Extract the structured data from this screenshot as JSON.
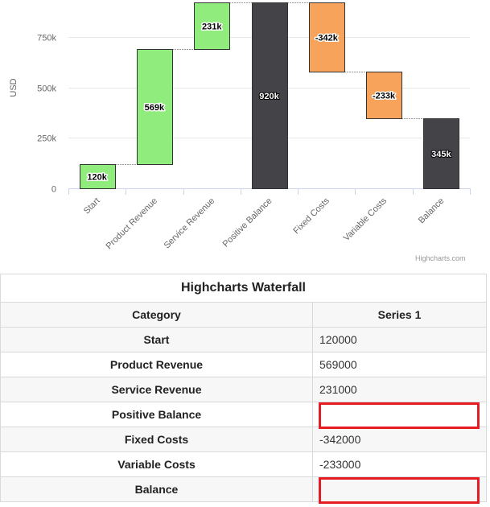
{
  "chart_data": {
    "type": "waterfall",
    "categories": [
      "Start",
      "Product Revenue",
      "Service Revenue",
      "Positive Balance",
      "Fixed Costs",
      "Variable Costs",
      "Balance"
    ],
    "values": [
      120000,
      569000,
      231000,
      920000,
      -342000,
      -233000,
      345000
    ],
    "data_labels": [
      "120k",
      "569k",
      "231k",
      "920k",
      "-342k",
      "-233k",
      "345k"
    ],
    "point_types": [
      "value",
      "value",
      "value",
      "intermediate-sum",
      "value",
      "value",
      "sum"
    ],
    "ylabel": "USD",
    "y_ticks": [
      0,
      250000,
      500000,
      750000
    ],
    "y_tick_labels": [
      "0",
      "250k",
      "500k",
      "750k"
    ],
    "ylim": [
      0,
      920000
    ],
    "colors": {
      "up": "#90ed7d",
      "down": "#f7a35c",
      "sum": "#434348",
      "connector": "#333333",
      "grid": "#e6e6e6"
    },
    "credits": "Highcharts.com"
  },
  "table": {
    "caption": "Highcharts Waterfall",
    "headers": [
      "Category",
      "Series 1"
    ],
    "rows": [
      {
        "category": "Start",
        "value": "120000"
      },
      {
        "category": "Product Revenue",
        "value": "569000"
      },
      {
        "category": "Service Revenue",
        "value": "231000"
      },
      {
        "category": "Positive Balance",
        "value": ""
      },
      {
        "category": "Fixed Costs",
        "value": "-342000"
      },
      {
        "category": "Variable Costs",
        "value": "-233000"
      },
      {
        "category": "Balance",
        "value": ""
      }
    ],
    "highlight_color": "#e51c23"
  }
}
